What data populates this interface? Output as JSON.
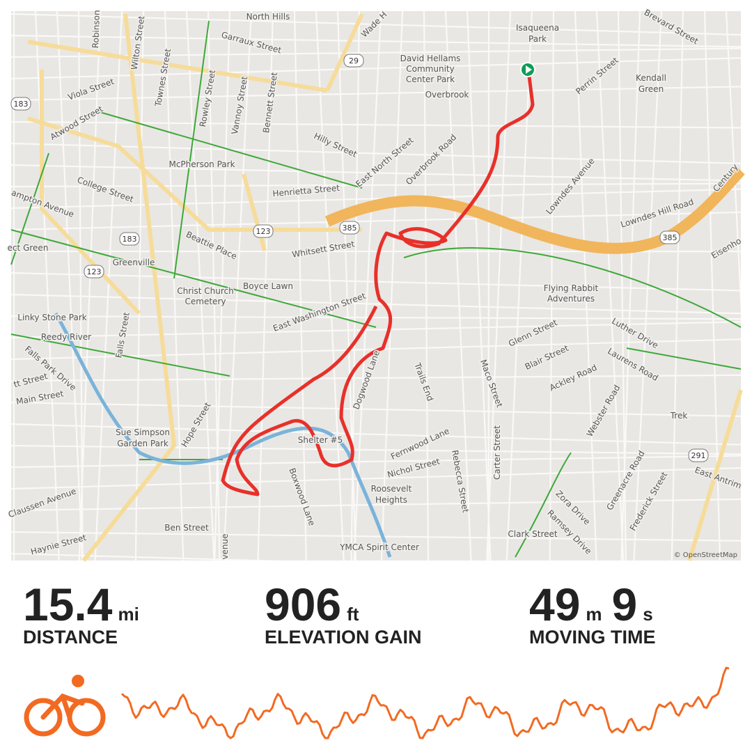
{
  "map": {
    "labels": [
      "North Hills",
      "Garraux Street",
      "Robinson",
      "Wilton Street",
      "Viola Street",
      "Townes Street",
      "Rowley Street",
      "Vannoy Street",
      "Bennett Street",
      "Atwood Street",
      "Hilly Street",
      "McPherson Park",
      "College Street",
      "Henrietta Street",
      "East North Street",
      "Overbrook Road",
      "Wade H",
      "Isaqueena",
      "Park",
      "David Hellams",
      "Community",
      "Center Park",
      "Overbrook",
      "Brevard Street",
      "Perrin Street",
      "Kendall",
      "Green",
      "Lowndes Avenue",
      "Lowndes Hill Road",
      "Century",
      "ampton Avenue",
      "Beattie Place",
      "Whitsett Street",
      "ect Green",
      "Greenville",
      "Boyce Lawn",
      "Christ Church",
      "Cemetery",
      "East Washington Street",
      "Flying Rabbit",
      "Adventures",
      "Eisenho",
      "Linky Stone Park",
      "Reedy River",
      "Falls Street",
      "Falls Park Drive",
      "Glenn Street",
      "Luther Drive",
      "Blair Street",
      "Laurens Road",
      "Ackley Road",
      "Trails End",
      "Dogwood Lane",
      "Maco Street",
      "Webster Road",
      "Trek",
      "tt Street",
      "Main Street",
      "Hope Street",
      "Sue Simpson",
      "Garden Park",
      "Fernwood Lane",
      "Shelter #5",
      "Nichol Street",
      "Rebecca Street",
      "Carter Street",
      "Boxwood Lane",
      "Roosevelt",
      "Heights",
      "Claussen Avenue",
      "Greenacre Road",
      "Frederick Street",
      "East Antrim",
      "Zora Drive",
      "Ramsey Drive",
      "Clark Street",
      "Ben Street",
      "venue",
      "YMCA Spirit Center",
      "Haynie Street"
    ],
    "shields": [
      "29",
      "183",
      "183",
      "123",
      "123",
      "385",
      "385",
      "291"
    ],
    "attribution": "© OpenStreetMap"
  },
  "stats": [
    {
      "value": "15.4",
      "unit": "mi",
      "label": "DISTANCE"
    },
    {
      "value": "906",
      "unit": "ft",
      "label": "ELEVATION GAIN"
    },
    {
      "value": "49",
      "unit": "m",
      "value2": "9",
      "unit2": "s",
      "label": "MOVING TIME"
    }
  ]
}
